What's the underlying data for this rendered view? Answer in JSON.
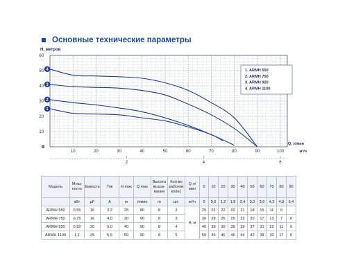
{
  "title": "Основные технические параметры",
  "chart_data": {
    "type": "line",
    "ylabel": "H, метров",
    "xlabel": "Q, л/мин",
    "xlabel2": "м³/ч",
    "yticks": [
      0,
      10,
      20,
      30,
      40,
      50,
      60
    ],
    "xticks": [
      10,
      20,
      30,
      40,
      50,
      60,
      70,
      80,
      90,
      100
    ],
    "x2ticks": [
      {
        "label": "2",
        "q": 33.3
      },
      {
        "label": "4",
        "q": 66.7
      },
      {
        "label": "6",
        "q": 100
      }
    ],
    "origin_label": "0",
    "xlim": [
      0,
      103
    ],
    "ylim": [
      0,
      60
    ],
    "grid": true,
    "legend_position": "right",
    "series": [
      {
        "name": "ARMH 550",
        "marker": "1",
        "points": [
          [
            0,
            25
          ],
          [
            10,
            22
          ],
          [
            20,
            21.5
          ],
          [
            30,
            21
          ],
          [
            40,
            19
          ],
          [
            50,
            17
          ],
          [
            60,
            13
          ],
          [
            70,
            8
          ],
          [
            75,
            4
          ]
        ]
      },
      {
        "name": "ARMH 750",
        "marker": "2",
        "points": [
          [
            0,
            31
          ],
          [
            10,
            29
          ],
          [
            20,
            27.5
          ],
          [
            30,
            25.5
          ],
          [
            40,
            23
          ],
          [
            50,
            19
          ],
          [
            60,
            14
          ],
          [
            70,
            8
          ],
          [
            80,
            1
          ]
        ]
      },
      {
        "name": "ARMH 920",
        "marker": "3",
        "points": [
          [
            0,
            41
          ],
          [
            10,
            39.5
          ],
          [
            20,
            39
          ],
          [
            30,
            38.5
          ],
          [
            40,
            37
          ],
          [
            50,
            34
          ],
          [
            60,
            28
          ],
          [
            70,
            21
          ],
          [
            80,
            12
          ],
          [
            90,
            0
          ]
        ]
      },
      {
        "name": "ARMH 1100",
        "marker": "4",
        "points": [
          [
            0,
            51
          ],
          [
            10,
            47
          ],
          [
            20,
            46.5
          ],
          [
            30,
            46
          ],
          [
            40,
            45
          ],
          [
            50,
            42
          ],
          [
            60,
            37
          ],
          [
            70,
            29
          ],
          [
            80,
            19
          ],
          [
            90,
            0
          ]
        ]
      }
    ],
    "colors": {
      "curve": "#1a3f8f",
      "grid": "#9aa3b5",
      "marker": "#1a3a8a"
    },
    "legend_title_items": [
      "1.  ARMH 550",
      "2.  ARMH 750",
      "3.  ARMH 920",
      "4.  ARMH 1100"
    ]
  },
  "table": {
    "header": [
      "Модель",
      "Мощ-ность",
      "Емкость",
      "Ток",
      "H max",
      "Q max",
      "Высота всасы-вания",
      "Кол-во рабочих колес",
      "Q л/мин",
      "0",
      "10",
      "20",
      "30",
      "40",
      "50",
      "60",
      "70",
      "80",
      "90"
    ],
    "units": [
      "",
      "кВт",
      "µF",
      "A",
      "m",
      "л/мин",
      "m",
      "шт.",
      "м³/ч",
      "0",
      "0,6",
      "1,2",
      "1,8",
      "2,4",
      "3,0",
      "3,6",
      "4,2",
      "4,8",
      "5,4"
    ],
    "h_label": "H, м",
    "rows": [
      [
        "ARMH 550",
        "0,55",
        "16",
        "3,2",
        "25",
        "80",
        "8",
        "2",
        "25",
        "22",
        "22",
        "22",
        "21",
        "18",
        "15",
        "11",
        "0",
        ""
      ],
      [
        "ARMH 750",
        "0,75",
        "16",
        "4,0",
        "30",
        "90",
        "8",
        "3",
        "30",
        "28",
        "26",
        "25",
        "22",
        "20",
        "17",
        "13",
        "7",
        "0"
      ],
      [
        "ARMH 920",
        "0,92",
        "20",
        "5,0",
        "40",
        "90",
        "8",
        "4",
        "40",
        "39",
        "39",
        "39",
        "39",
        "37",
        "31",
        "22",
        "11",
        "0"
      ],
      [
        "ARMH 1100",
        "1,1",
        "25",
        "5,5",
        "50",
        "90",
        "8",
        "5",
        "50",
        "46",
        "46",
        "46",
        "44",
        "42",
        "38",
        "30",
        "17",
        "0"
      ]
    ]
  }
}
